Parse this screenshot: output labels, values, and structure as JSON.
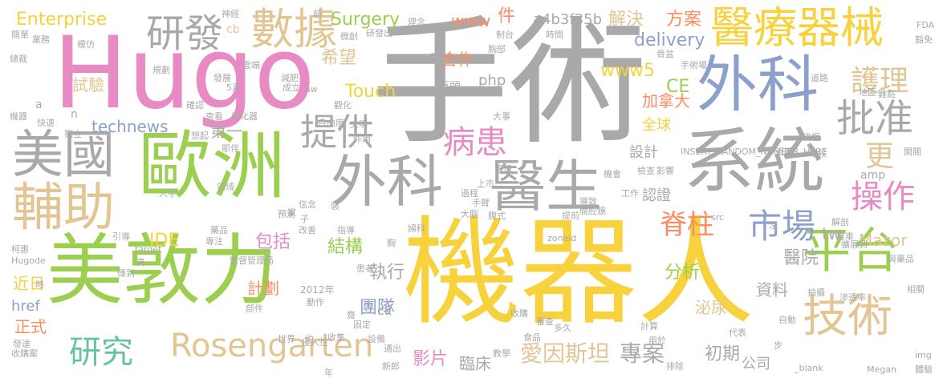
{
  "palette": {
    "gray": "#a9a9a9",
    "green": "#9ccf4f",
    "yellow": "#f7d23c",
    "pink": "#e88bc4",
    "blue": "#8da0cb",
    "tan": "#e3c594",
    "orange": "#fc8d62",
    "teal": "#66c2a5"
  },
  "words": [
    {
      "text": "手術",
      "color": "gray"
    },
    {
      "text": "Hugo",
      "color": "pink"
    },
    {
      "text": "機器人",
      "color": "yellow"
    },
    {
      "text": "美敦力",
      "color": "green"
    },
    {
      "text": "歐洲",
      "color": "green"
    },
    {
      "text": "系統",
      "color": "gray"
    },
    {
      "text": "外科",
      "color": "blue"
    },
    {
      "text": "外科",
      "color": "gray"
    },
    {
      "text": "醫生",
      "color": "gray"
    },
    {
      "text": "醫療器械",
      "color": "yellow"
    },
    {
      "text": "美國",
      "color": "gray"
    },
    {
      "text": "輔助",
      "color": "tan"
    },
    {
      "text": "數據",
      "color": "tan"
    },
    {
      "text": "研發",
      "color": "gray"
    },
    {
      "text": "平台",
      "color": "green"
    },
    {
      "text": "技術",
      "color": "tan"
    },
    {
      "text": "批准",
      "color": "gray"
    },
    {
      "text": "Rosengarten",
      "color": "tan"
    },
    {
      "text": "提供",
      "color": "gray"
    },
    {
      "text": "病患",
      "color": "pink"
    },
    {
      "text": "市場",
      "color": "blue"
    },
    {
      "text": "操作",
      "color": "pink"
    },
    {
      "text": "護理",
      "color": "tan"
    },
    {
      "text": "研究",
      "color": "teal"
    },
    {
      "text": "脊柱",
      "color": "orange"
    },
    {
      "text": "愛因斯坦",
      "color": "tan"
    },
    {
      "text": "專案",
      "color": "gray"
    },
    {
      "text": "更",
      "color": "tan"
    },
    {
      "text": "Enterprise",
      "color": "yellow"
    },
    {
      "text": "Surgery",
      "color": "green"
    },
    {
      "text": "www",
      "color": "orange"
    },
    {
      "text": "件",
      "color": "orange"
    },
    {
      "text": "a4b3f35b",
      "color": "gray"
    },
    {
      "text": "解決",
      "color": "tan"
    },
    {
      "text": "方案",
      "color": "orange"
    },
    {
      "text": "delivery",
      "color": "blue"
    },
    {
      "text": "www5",
      "color": "yellow"
    },
    {
      "text": "希望",
      "color": "tan"
    },
    {
      "text": "合作",
      "color": "orange"
    },
    {
      "text": "php",
      "color": "gray"
    },
    {
      "text": "Touch",
      "color": "yellow"
    },
    {
      "text": "CE",
      "color": "green"
    },
    {
      "text": "加拿大",
      "color": "orange"
    },
    {
      "text": "試驗",
      "color": "tan"
    },
    {
      "text": "technews",
      "color": "blue"
    },
    {
      "text": "第一",
      "color": "gray"
    },
    {
      "text": "全球",
      "color": "yellow"
    },
    {
      "text": "設計",
      "color": "gray"
    },
    {
      "text": "認證",
      "color": "gray"
    },
    {
      "text": "IDE",
      "color": "yellow"
    },
    {
      "text": "包括",
      "color": "pink"
    },
    {
      "text": "結構",
      "color": "green"
    },
    {
      "text": "執行",
      "color": "gray"
    },
    {
      "text": "Mazor",
      "color": "tan"
    },
    {
      "text": "tw",
      "color": "gray"
    },
    {
      "text": "醫院",
      "color": "gray"
    },
    {
      "text": "分析",
      "color": "green"
    },
    {
      "text": "計劃",
      "color": "orange"
    },
    {
      "text": "團隊",
      "color": "blue"
    },
    {
      "text": "資料",
      "color": "gray"
    },
    {
      "text": "泌尿",
      "color": "tan"
    },
    {
      "text": "近日",
      "color": "yellow"
    },
    {
      "text": "href",
      "color": "blue"
    },
    {
      "text": "正式",
      "color": "orange"
    },
    {
      "text": "ck",
      "color": "gray"
    },
    {
      "text": "影片",
      "color": "pink"
    },
    {
      "text": "臨床",
      "color": "gray"
    },
    {
      "text": "初期",
      "color": "gray"
    },
    {
      "text": "公司",
      "color": "gray"
    },
    {
      "text": "2012年",
      "color": "gray"
    },
    {
      "text": "cb",
      "color": "tan"
    },
    {
      "text": "神經",
      "color": "gray"
    },
    {
      "text": "簡單",
      "color": "gray"
    },
    {
      "text": "業務",
      "color": "gray"
    },
    {
      "text": "模仿",
      "color": "gray"
    },
    {
      "text": "總裁",
      "color": "gray"
    },
    {
      "text": "規劃",
      "color": "gray"
    },
    {
      "text": "發展",
      "color": "gray"
    },
    {
      "text": "雲端",
      "color": "gray"
    },
    {
      "text": "減肥",
      "color": "gray"
    },
    {
      "text": "成立",
      "color": "gray"
    },
    {
      "text": "aw",
      "color": "gray"
    },
    {
      "text": "巨頭",
      "color": "gray"
    },
    {
      "text": "確認",
      "color": "gray"
    },
    {
      "text": "查看",
      "color": "gray"
    },
    {
      "text": "孵化器",
      "color": "gray"
    },
    {
      "text": "機器",
      "color": "gray"
    },
    {
      "text": "快速",
      "color": "gray"
    },
    {
      "text": "獨立",
      "color": "gray"
    },
    {
      "text": "想起",
      "color": "gray"
    },
    {
      "text": "自由度",
      "color": "gray"
    },
    {
      "text": "文明",
      "color": "gray"
    },
    {
      "text": "作用",
      "color": "gray"
    },
    {
      "text": "耶伴",
      "color": "gray"
    },
    {
      "text": "領域",
      "color": "gray"
    },
    {
      "text": "人手",
      "color": "gray"
    },
    {
      "text": "引導",
      "color": "gray"
    },
    {
      "text": "柯惠",
      "color": "gray"
    },
    {
      "text": "Hugode",
      "color": "gray"
    },
    {
      "text": "target",
      "color": "gray"
    },
    {
      "text": "高",
      "color": "gray"
    },
    {
      "text": "傳到",
      "color": "gray"
    },
    {
      "text": "藥品",
      "color": "gray"
    },
    {
      "text": "預測",
      "color": "gray"
    },
    {
      "text": "改善",
      "color": "gray"
    },
    {
      "text": "指導",
      "color": "gray"
    },
    {
      "text": "部件",
      "color": "gray"
    },
    {
      "text": "動作",
      "color": "gray"
    },
    {
      "text": "專注",
      "color": "gray"
    },
    {
      "text": "監督管理局",
      "color": "gray"
    },
    {
      "text": "患者",
      "color": "gray"
    },
    {
      "text": "發達",
      "color": "gray"
    },
    {
      "text": "收購案",
      "color": "gray"
    },
    {
      "text": "世界",
      "color": "gray"
    },
    {
      "text": "侵入性",
      "color": "gray"
    },
    {
      "text": "收集",
      "color": "gray"
    },
    {
      "text": "設備",
      "color": "gray"
    },
    {
      "text": "固定",
      "color": "gray"
    },
    {
      "text": "通出",
      "color": "gray"
    },
    {
      "text": "新郎",
      "color": "gray"
    },
    {
      "text": "年",
      "color": "gray"
    },
    {
      "text": "教學",
      "color": "gray"
    },
    {
      "text": "食品",
      "color": "gray"
    },
    {
      "text": "收購",
      "color": "gray"
    },
    {
      "text": "審查",
      "color": "gray"
    },
    {
      "text": "多久",
      "color": "gray"
    },
    {
      "text": "計算",
      "color": "gray"
    },
    {
      "text": "用於",
      "color": "gray"
    },
    {
      "text": "代表",
      "color": "gray"
    },
    {
      "text": "步",
      "color": "gray"
    },
    {
      "text": "排除",
      "color": "gray"
    },
    {
      "text": "_blank",
      "color": "gray"
    },
    {
      "text": "Megan",
      "color": "gray"
    },
    {
      "text": "體驗",
      "color": "gray"
    },
    {
      "text": "img",
      "color": "gray"
    },
    {
      "text": "自動",
      "color": "gray"
    },
    {
      "text": "拍攝",
      "color": "gray"
    },
    {
      "text": "滲透率",
      "color": "gray"
    },
    {
      "text": "相關",
      "color": "gray"
    },
    {
      "text": "與藥品",
      "color": "gray"
    },
    {
      "text": "擴展到",
      "color": "gray"
    },
    {
      "text": "推車",
      "color": "gray"
    },
    {
      "text": "解剖",
      "color": "gray"
    },
    {
      "text": "zoneid",
      "color": "gray"
    },
    {
      "text": "src",
      "color": "gray"
    },
    {
      "text": "沒",
      "color": "gray"
    },
    {
      "text": "提前",
      "color": "gray"
    },
    {
      "text": "腹式",
      "color": "gray"
    },
    {
      "text": "腹腔鏡",
      "color": "gray"
    },
    {
      "text": "手臂",
      "color": "gray"
    },
    {
      "text": "大腦",
      "color": "gray"
    },
    {
      "text": "過程",
      "color": "gray"
    },
    {
      "text": "上市",
      "color": "gray"
    },
    {
      "text": "工作",
      "color": "gray"
    },
    {
      "text": "導致",
      "color": "gray"
    },
    {
      "text": "管理",
      "color": "gray"
    },
    {
      "text": "機會",
      "color": "gray"
    },
    {
      "text": "檢查",
      "color": "gray"
    },
    {
      "text": "影響",
      "color": "gray"
    },
    {
      "text": "INSERT_RANDOM_NUMBER_HERE",
      "color": "gray"
    },
    {
      "text": "近期",
      "color": "gray"
    },
    {
      "text": "階段",
      "color": "gray"
    },
    {
      "text": "開關",
      "color": "gray"
    },
    {
      "text": "流程",
      "color": "gray"
    },
    {
      "text": "amp",
      "color": "gray"
    },
    {
      "text": "大事",
      "color": "gray"
    },
    {
      "text": "地區",
      "color": "gray"
    },
    {
      "text": "難點",
      "color": "gray"
    },
    {
      "text": "道路",
      "color": "gray"
    },
    {
      "text": "骨盆",
      "color": "gray"
    },
    {
      "text": "手術場",
      "color": "gray"
    },
    {
      "text": "產品",
      "color": "gray"
    },
    {
      "text": "時間",
      "color": "gray"
    },
    {
      "text": "胸部",
      "color": "gray"
    },
    {
      "text": "制台",
      "color": "gray"
    },
    {
      "text": "FDA",
      "color": "gray"
    },
    {
      "text": "豁免",
      "color": "gray"
    },
    {
      "text": "研發出",
      "color": "gray"
    },
    {
      "text": "理念",
      "color": "gray"
    },
    {
      "text": "前",
      "color": "gray"
    },
    {
      "text": "微創",
      "color": "gray"
    },
    {
      "text": "花",
      "color": "gray"
    },
    {
      "text": "a",
      "color": "gray"
    },
    {
      "text": "n",
      "color": "gray"
    },
    {
      "text": "5月",
      "color": "gray"
    },
    {
      "text": "觀化",
      "color": "gray"
    },
    {
      "text": "信念",
      "color": "gray"
    },
    {
      "text": "家",
      "color": "gray"
    },
    {
      "text": "子",
      "color": "gray"
    },
    {
      "text": "手",
      "color": "gray"
    },
    {
      "text": "約",
      "color": "gray"
    },
    {
      "text": "胸",
      "color": "gray"
    },
    {
      "text": "婦科",
      "color": "gray"
    },
    {
      "text": "裝",
      "color": "gray"
    },
    {
      "text": "齋",
      "color": "gray"
    },
    {
      "text": "時",
      "color": "gray"
    }
  ]
}
